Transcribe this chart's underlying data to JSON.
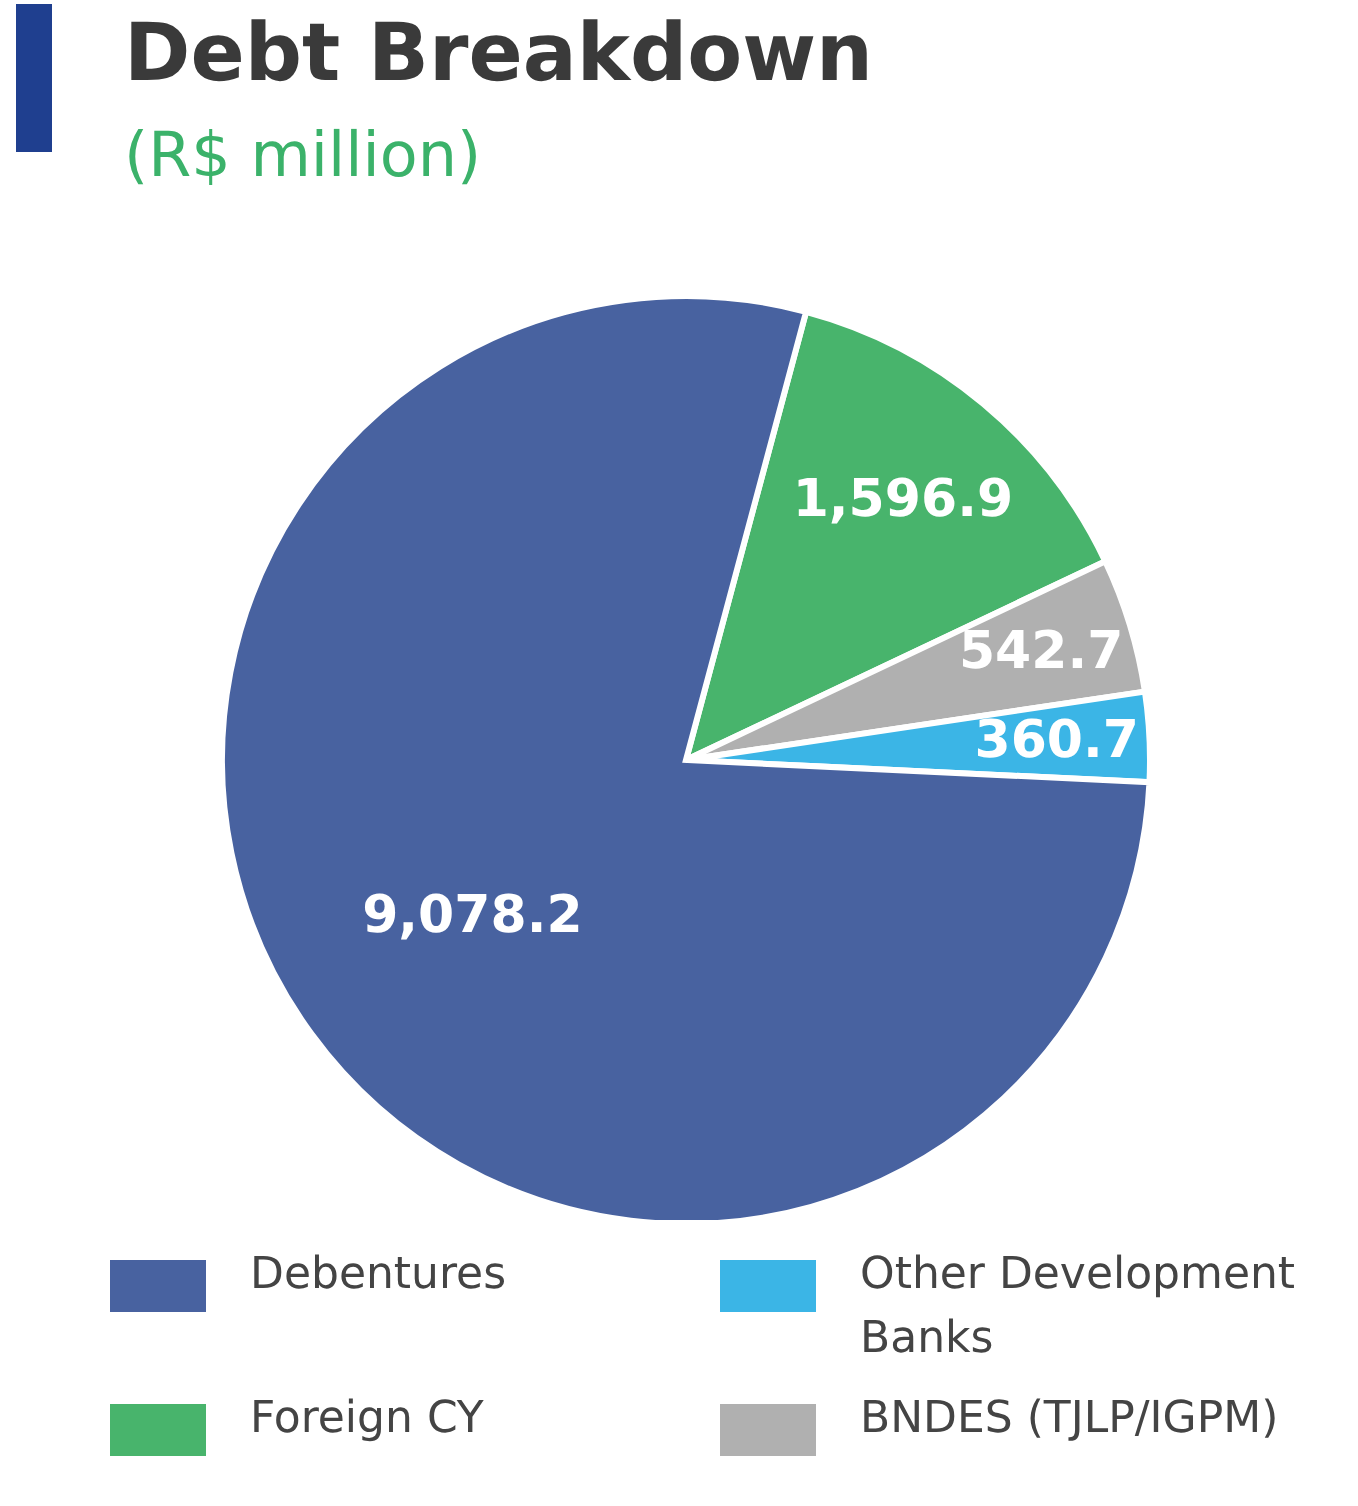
{
  "chart_data": {
    "type": "pie",
    "title": "Debt Breakdown",
    "subtitle": "(R$ million)",
    "categories": [
      "Foreign CY",
      "BNDES (TJLP/IGPM)",
      "Other Development Banks",
      "Debentures"
    ],
    "values": [
      1596.9,
      542.7,
      360.7,
      9078.2
    ],
    "colors": [
      "#48b46c",
      "#b0b0b0",
      "#3bb5e6",
      "#4862a0"
    ],
    "value_labels": [
      "1,596.9",
      "542.7",
      "360.7",
      "9,078.2"
    ],
    "legend": "bottom"
  }
}
